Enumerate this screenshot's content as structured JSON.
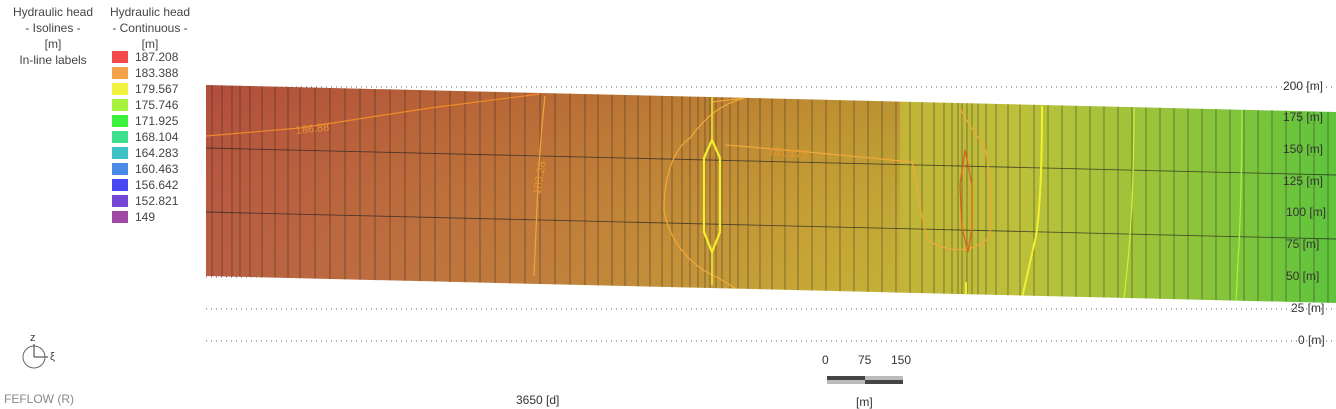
{
  "legend": {
    "isolines": {
      "title": "Hydraulic head",
      "subtitle": "- Isolines -",
      "unit": "[m]",
      "mode": "In-line labels"
    },
    "continuous": {
      "title": "Hydraulic head",
      "subtitle": "- Continuous -",
      "unit": "[m]",
      "entries": [
        {
          "value": "187.208",
          "color": "#f24b4b"
        },
        {
          "value": "183.388",
          "color": "#f4a24c"
        },
        {
          "value": "179.567",
          "color": "#f2f240"
        },
        {
          "value": "175.746",
          "color": "#a6f23e"
        },
        {
          "value": "171.925",
          "color": "#3df23f"
        },
        {
          "value": "168.104",
          "color": "#3ee08e"
        },
        {
          "value": "164.283",
          "color": "#3ec2c6"
        },
        {
          "value": "160.463",
          "color": "#4a8ae6"
        },
        {
          "value": "156.642",
          "color": "#4646f2"
        },
        {
          "value": "152.821",
          "color": "#7446d4"
        },
        {
          "value": "149",
          "color": "#a048a6"
        }
      ]
    }
  },
  "axis": {
    "ticks": [
      "200 [m]",
      "175 [m]",
      "150 [m]",
      "125 [m]",
      "100 [m]",
      "75 [m]",
      "50 [m]",
      "25 [m]",
      "0 [m]"
    ]
  },
  "isoline_labels": [
    "186.88",
    "183.28",
    "181.175"
  ],
  "orientation": {
    "z_label": "z",
    "xi_label": "ξ"
  },
  "footer": {
    "app": "FEFLOW (R)",
    "time": "3650 [d]"
  },
  "scale_bar": {
    "ticks": [
      "0",
      "75",
      "150"
    ],
    "unit": "[m]"
  }
}
